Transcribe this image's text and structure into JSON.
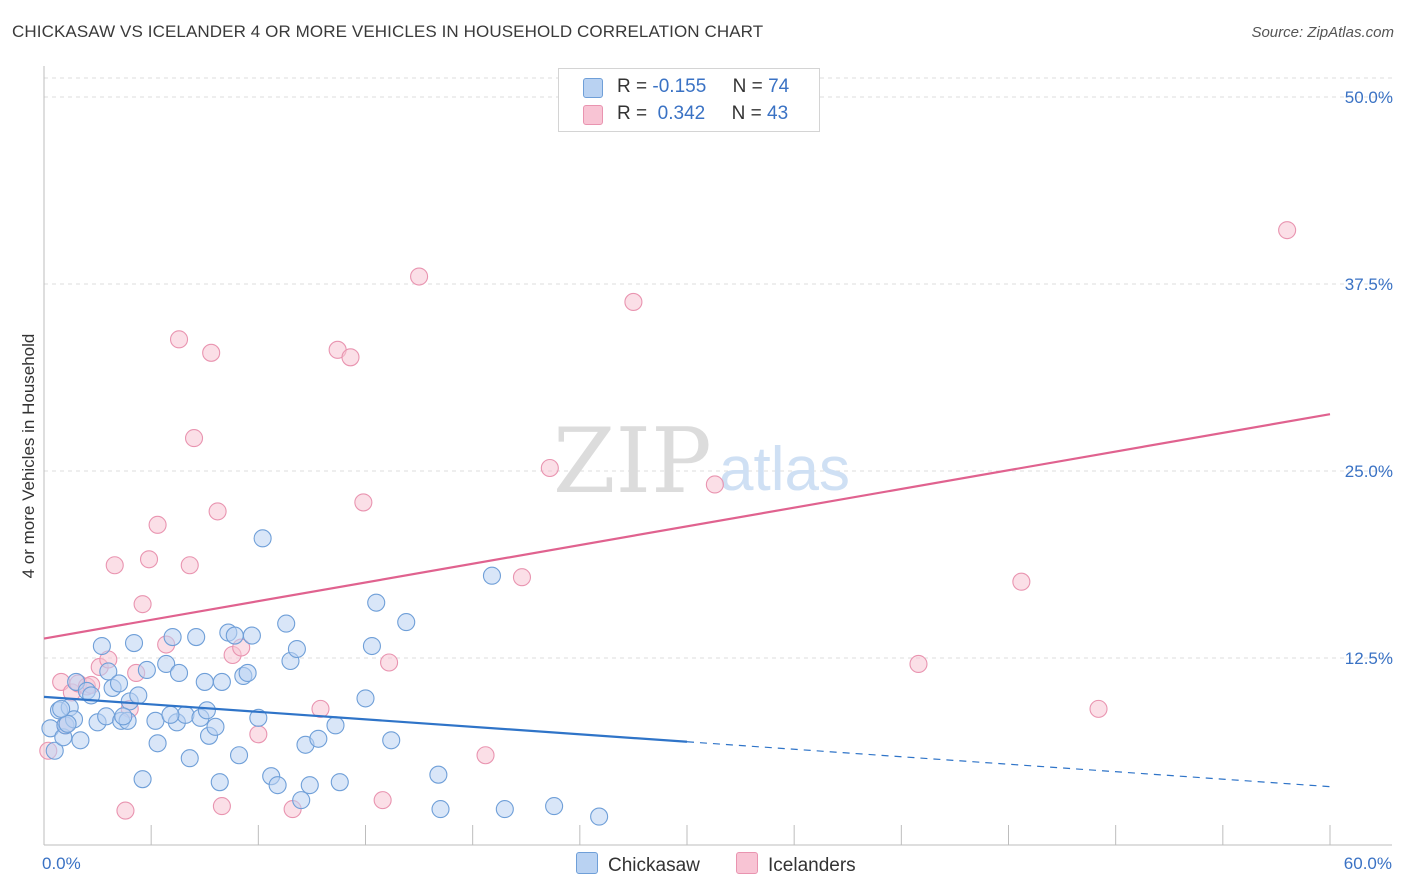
{
  "header": {
    "title": "CHICKASAW VS ICELANDER 4 OR MORE VEHICLES IN HOUSEHOLD CORRELATION CHART",
    "source": "Source: ZipAtlas.com"
  },
  "legend": {
    "rows": [
      {
        "r_label": "R =",
        "r_value": "-0.155",
        "n_label": "N =",
        "n_value": "74"
      },
      {
        "r_label": "R =",
        "r_value": "0.342",
        "n_label": "N =",
        "n_value": "43"
      }
    ]
  },
  "bottom_legend": {
    "items": [
      {
        "label": "Chickasaw"
      },
      {
        "label": "Icelanders"
      }
    ]
  },
  "watermark": {
    "zip": "ZIP",
    "atlas": "atlas"
  },
  "colors": {
    "chickasaw_fill": "#b9d2f2",
    "chickasaw_stroke": "#6f9fd8",
    "chickasaw_line": "#2f74c8",
    "icelander_fill": "#f8c4d4",
    "icelander_stroke": "#e994b0",
    "icelander_line": "#e0628f",
    "tick_text": "#3a72c4",
    "grid": "#dcdcdc"
  },
  "chart_data": {
    "type": "scatter",
    "title": "CHICKASAW VS ICELANDER 4 OR MORE VEHICLES IN HOUSEHOLD CORRELATION CHART",
    "xlabel": "",
    "ylabel": "4 or more Vehicles in Household",
    "xlim": [
      0,
      60
    ],
    "ylim": [
      0,
      50
    ],
    "x_tick_labels": [
      {
        "value": 0,
        "label": "0.0%"
      },
      {
        "value": 60,
        "label": "60.0%"
      }
    ],
    "y_tick_labels": [
      {
        "value": 12.5,
        "label": "12.5%"
      },
      {
        "value": 25,
        "label": "25.0%"
      },
      {
        "value": 37.5,
        "label": "37.5%"
      },
      {
        "value": 50,
        "label": "50.0%"
      }
    ],
    "series": [
      {
        "name": "Chickasaw",
        "R": -0.155,
        "N": 74,
        "trend": {
          "x0": 0,
          "y0": 9.9,
          "x1": 30,
          "y1": 6.9,
          "dash_to_x": 60,
          "dash_to_y": 3.9
        },
        "points": [
          [
            0.3,
            7.8
          ],
          [
            0.5,
            6.3
          ],
          [
            0.7,
            9.0
          ],
          [
            0.9,
            7.2
          ],
          [
            1.0,
            8.0
          ],
          [
            1.2,
            9.2
          ],
          [
            1.4,
            8.4
          ],
          [
            1.5,
            10.9
          ],
          [
            1.7,
            7.0
          ],
          [
            2.0,
            10.3
          ],
          [
            2.2,
            10.0
          ],
          [
            2.5,
            8.2
          ],
          [
            2.7,
            13.3
          ],
          [
            2.9,
            8.6
          ],
          [
            3.0,
            11.6
          ],
          [
            3.2,
            10.5
          ],
          [
            3.5,
            10.8
          ],
          [
            3.6,
            8.3
          ],
          [
            3.9,
            8.3
          ],
          [
            4.0,
            9.6
          ],
          [
            4.2,
            13.5
          ],
          [
            4.4,
            10.0
          ],
          [
            4.6,
            4.4
          ],
          [
            4.8,
            11.7
          ],
          [
            5.2,
            8.3
          ],
          [
            5.3,
            6.8
          ],
          [
            5.7,
            12.1
          ],
          [
            6.0,
            13.9
          ],
          [
            6.2,
            8.2
          ],
          [
            6.3,
            11.5
          ],
          [
            6.6,
            8.7
          ],
          [
            6.8,
            5.8
          ],
          [
            7.1,
            13.9
          ],
          [
            7.3,
            8.5
          ],
          [
            7.5,
            10.9
          ],
          [
            7.7,
            7.3
          ],
          [
            8.0,
            7.9
          ],
          [
            8.2,
            4.2
          ],
          [
            8.3,
            10.9
          ],
          [
            8.6,
            14.2
          ],
          [
            8.9,
            14.0
          ],
          [
            9.1,
            6.0
          ],
          [
            9.3,
            11.3
          ],
          [
            9.5,
            11.5
          ],
          [
            9.7,
            14.0
          ],
          [
            10.0,
            8.5
          ],
          [
            10.2,
            20.5
          ],
          [
            10.6,
            4.6
          ],
          [
            10.9,
            4.0
          ],
          [
            11.3,
            14.8
          ],
          [
            11.5,
            12.3
          ],
          [
            11.8,
            13.1
          ],
          [
            12.0,
            3.0
          ],
          [
            12.2,
            6.7
          ],
          [
            12.4,
            4.0
          ],
          [
            12.8,
            7.1
          ],
          [
            13.6,
            8.0
          ],
          [
            13.8,
            4.2
          ],
          [
            15.0,
            9.8
          ],
          [
            15.3,
            13.3
          ],
          [
            15.5,
            16.2
          ],
          [
            16.2,
            7.0
          ],
          [
            16.9,
            14.9
          ],
          [
            18.4,
            4.7
          ],
          [
            18.5,
            2.4
          ],
          [
            20.9,
            18.0
          ],
          [
            21.5,
            2.4
          ],
          [
            23.8,
            2.6
          ],
          [
            25.9,
            1.9
          ],
          [
            3.7,
            8.6
          ],
          [
            5.9,
            8.7
          ],
          [
            7.6,
            9.0
          ],
          [
            1.1,
            8.1
          ],
          [
            0.8,
            9.1
          ]
        ]
      },
      {
        "name": "Icelanders",
        "R": 0.342,
        "N": 43,
        "trend": {
          "x0": 0,
          "y0": 13.8,
          "x1": 60,
          "y1": 28.8
        },
        "points": [
          [
            0.2,
            6.3
          ],
          [
            0.8,
            10.9
          ],
          [
            1.0,
            8.0
          ],
          [
            1.3,
            10.2
          ],
          [
            1.6,
            10.8
          ],
          [
            2.0,
            10.6
          ],
          [
            2.2,
            10.7
          ],
          [
            2.6,
            11.9
          ],
          [
            3.0,
            12.4
          ],
          [
            3.3,
            18.7
          ],
          [
            3.8,
            2.3
          ],
          [
            4.0,
            9.1
          ],
          [
            4.3,
            11.5
          ],
          [
            4.6,
            16.1
          ],
          [
            4.9,
            19.1
          ],
          [
            5.3,
            21.4
          ],
          [
            5.7,
            13.4
          ],
          [
            6.3,
            33.8
          ],
          [
            6.8,
            18.7
          ],
          [
            7.0,
            27.2
          ],
          [
            7.8,
            32.9
          ],
          [
            8.1,
            22.3
          ],
          [
            8.3,
            2.6
          ],
          [
            8.8,
            12.7
          ],
          [
            9.2,
            13.2
          ],
          [
            10.0,
            7.4
          ],
          [
            11.6,
            2.4
          ],
          [
            12.9,
            9.1
          ],
          [
            13.7,
            33.1
          ],
          [
            14.3,
            32.6
          ],
          [
            14.9,
            22.9
          ],
          [
            15.8,
            3.0
          ],
          [
            16.1,
            12.2
          ],
          [
            17.5,
            38.0
          ],
          [
            20.6,
            6.0
          ],
          [
            22.3,
            17.9
          ],
          [
            23.6,
            25.2
          ],
          [
            27.5,
            36.3
          ],
          [
            31.3,
            24.1
          ],
          [
            40.8,
            12.1
          ],
          [
            45.6,
            17.6
          ],
          [
            49.2,
            9.1
          ],
          [
            58.0,
            41.1
          ]
        ]
      }
    ]
  }
}
